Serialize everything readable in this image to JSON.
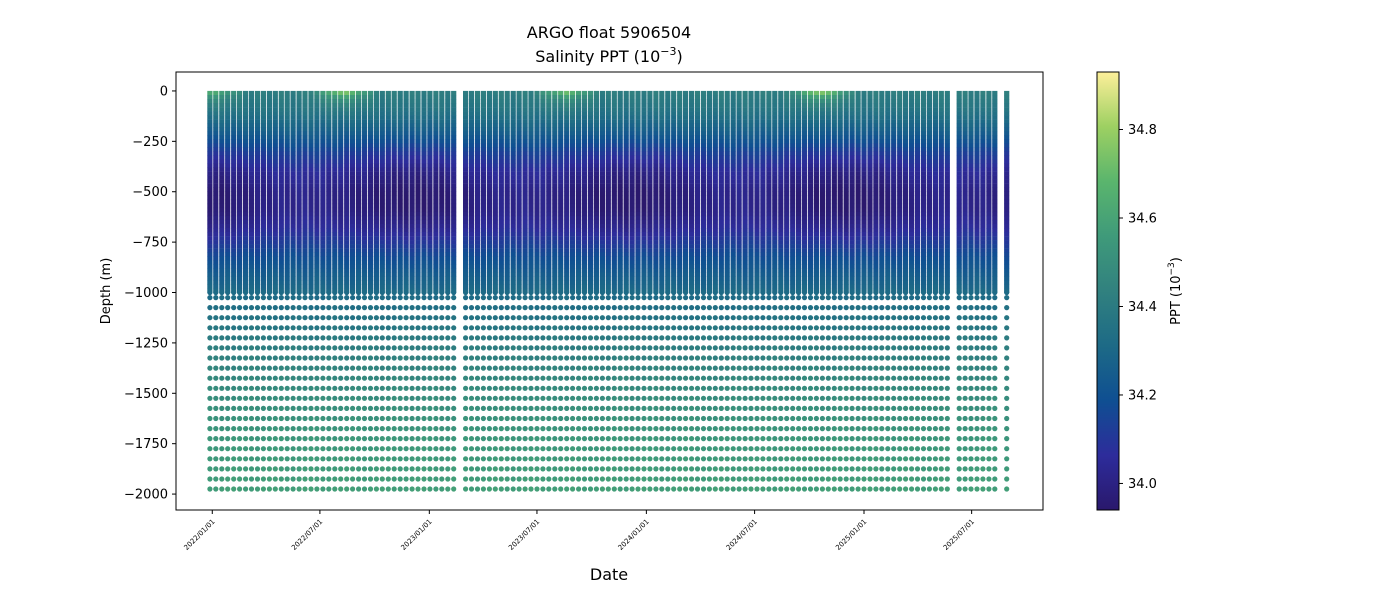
{
  "chart_data": {
    "type": "scatter",
    "title_line1": "ARGO float 5906504",
    "title_line2": "Salinity PPT (10",
    "title_exp": "−3",
    "title_close": ")",
    "xlabel": "Date",
    "ylabel": "Depth (m)",
    "ylim": [
      -2079,
      94
    ],
    "xlim": [
      "2021-11-01",
      "2025-10-29"
    ],
    "yticks": [
      0,
      -250,
      -500,
      -750,
      -1000,
      -1250,
      -1500,
      -1750,
      -2000
    ],
    "ytick_labels": [
      "0",
      "−250",
      "−500",
      "−750",
      "−1000",
      "−1250",
      "−1500",
      "−1750",
      "−2000"
    ],
    "xticks": [
      "2022-01-01",
      "2022-07-01",
      "2023-01-01",
      "2023-07-01",
      "2024-01-01",
      "2024-07-01",
      "2025-01-01",
      "2025-07-01"
    ],
    "xtick_labels": [
      "2022/01/01",
      "2022/07/01",
      "2023/01/01",
      "2023/07/01",
      "2024/01/01",
      "2024/07/01",
      "2025/01/01",
      "2025/07/01"
    ],
    "profiles": {
      "first_date": "2021-12-28",
      "cycle_days": 10,
      "cycles": 135,
      "missing_cycles": [
        42,
        125,
        133
      ]
    },
    "mean_profile": {
      "depth": [
        0,
        -100,
        -200,
        -300,
        -400,
        -500,
        -600,
        -700,
        -800,
        -900,
        -1000,
        -1250,
        -1500,
        -1750,
        -2000
      ],
      "salinity": [
        34.42,
        34.36,
        34.26,
        34.13,
        34.03,
        33.98,
        33.99,
        34.06,
        34.16,
        34.24,
        34.31,
        34.41,
        34.49,
        34.55,
        34.58
      ]
    },
    "surface_highs": [
      {
        "date": "2022-01-01",
        "salinity": 34.7
      },
      {
        "date": "2022-08-10",
        "salinity": 34.85
      },
      {
        "date": "2023-08-20",
        "salinity": 34.78
      },
      {
        "date": "2024-10-20",
        "salinity": 34.88
      }
    ],
    "deep_levels": {
      "from": -1025,
      "to": -1975,
      "step": -50
    },
    "colorbar": {
      "label": "PPT (10",
      "label_exp": "−3",
      "label_close": ")",
      "range": [
        33.94,
        34.93
      ],
      "ticks": [
        34.0,
        34.2,
        34.4,
        34.6,
        34.8
      ],
      "tick_labels": [
        "34.0",
        "34.2",
        "34.4",
        "34.6",
        "34.8"
      ],
      "colormap": [
        "#2a186c",
        "#2d2c9b",
        "#0f4f92",
        "#1d6a86",
        "#31817f",
        "#3f9a7a",
        "#5ab56d",
        "#9dd062",
        "#fdef9a"
      ]
    }
  }
}
